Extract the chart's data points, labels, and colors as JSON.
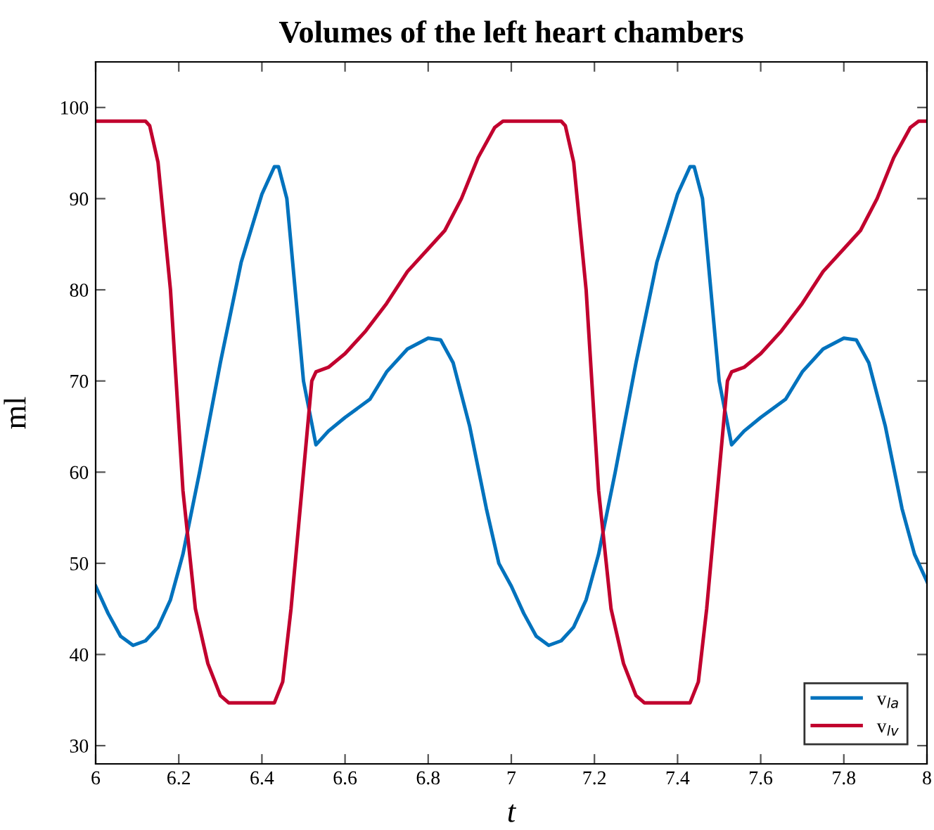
{
  "chart_data": {
    "type": "line",
    "title": "Volumes of the left heart chambers",
    "xlabel": "t",
    "ylabel": "ml",
    "xlim": [
      6,
      8
    ],
    "ylim": [
      28,
      105
    ],
    "xticks": [
      6,
      6.2,
      6.4,
      6.6,
      6.8,
      7,
      7.2,
      7.4,
      7.6,
      7.8,
      8
    ],
    "yticks": [
      30,
      40,
      50,
      60,
      70,
      80,
      90,
      100
    ],
    "grid": false,
    "legend": "bottom right",
    "marker": "none",
    "line_style": "solid",
    "series": [
      {
        "name": "v$_{la}$",
        "color": "#0072bd",
        "x": [
          6.0,
          6.03,
          6.06,
          6.09,
          6.12,
          6.15,
          6.18,
          6.21,
          6.25,
          6.3,
          6.35,
          6.4,
          6.43,
          6.44,
          6.46,
          6.48,
          6.5,
          6.53,
          6.56,
          6.6,
          6.66,
          6.7,
          6.75,
          6.8,
          6.83,
          6.86,
          6.9,
          6.94,
          6.97,
          7.0,
          7.03,
          7.06,
          7.09,
          7.12,
          7.15,
          7.18,
          7.21,
          7.25,
          7.3,
          7.35,
          7.4,
          7.43,
          7.44,
          7.46,
          7.48,
          7.5,
          7.53,
          7.56,
          7.6,
          7.66,
          7.7,
          7.75,
          7.8,
          7.83,
          7.86,
          7.9,
          7.94,
          7.97,
          8.0
        ],
        "values": [
          47.5,
          44.5,
          42,
          41,
          41.5,
          43,
          46,
          51,
          60,
          72,
          83,
          90.5,
          93.5,
          93.5,
          90,
          80,
          70,
          63,
          64.5,
          66,
          68,
          71,
          73.5,
          74.7,
          74.5,
          72,
          65,
          56,
          50,
          47.5,
          44.5,
          42,
          41,
          41.5,
          43,
          46,
          51,
          60,
          72,
          83,
          90.5,
          93.5,
          93.5,
          90,
          80,
          70,
          63,
          64.5,
          66,
          68,
          71,
          73.5,
          74.7,
          74.5,
          72,
          65,
          56,
          51,
          48
        ]
      },
      {
        "name": "v$_{lv}$",
        "color": "#c1002e",
        "x": [
          6.0,
          6.12,
          6.13,
          6.15,
          6.18,
          6.21,
          6.24,
          6.27,
          6.3,
          6.32,
          6.43,
          6.45,
          6.47,
          6.5,
          6.52,
          6.53,
          6.56,
          6.6,
          6.65,
          6.7,
          6.75,
          6.8,
          6.84,
          6.88,
          6.92,
          6.96,
          6.98,
          7.0,
          7.12,
          7.13,
          7.15,
          7.18,
          7.21,
          7.24,
          7.27,
          7.3,
          7.32,
          7.43,
          7.45,
          7.47,
          7.5,
          7.52,
          7.53,
          7.56,
          7.6,
          7.65,
          7.7,
          7.75,
          7.8,
          7.84,
          7.88,
          7.92,
          7.96,
          7.98,
          8.0
        ],
        "values": [
          98.5,
          98.5,
          98,
          94,
          80,
          58,
          45,
          39,
          35.5,
          34.7,
          34.7,
          37,
          45,
          60,
          70,
          71,
          71.5,
          73,
          75.5,
          78.5,
          82,
          84.5,
          86.5,
          90,
          94.5,
          97.8,
          98.5,
          98.5,
          98.5,
          98,
          94,
          80,
          58,
          45,
          39,
          35.5,
          34.7,
          34.7,
          37,
          45,
          60,
          70,
          71,
          71.5,
          73,
          75.5,
          78.5,
          82,
          84.5,
          86.5,
          90,
          94.5,
          97.8,
          98.5,
          98.5
        ]
      }
    ]
  }
}
